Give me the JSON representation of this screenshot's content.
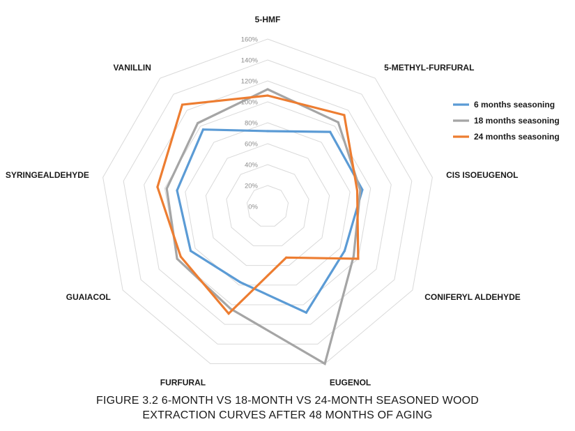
{
  "caption": {
    "line1": "FIGURE 3.2  6-MONTH VS 18-MONTH VS 24-MONTH SEASONED WOOD",
    "line2": "EXTRACTION CURVES AFTER 48 MONTHS OF AGING"
  },
  "chart_data": {
    "type": "radar",
    "categories": [
      "5-HMF",
      "5-METHYL-FURFURAL",
      "CIS ISOEUGENOL",
      "CONIFERYL ALDEHYDE",
      "EUGENOL",
      "FURFURAL",
      "GUAIACOL",
      "SYRINGEALDEHYDE",
      "VANILLIN"
    ],
    "ticks": [
      "0%",
      "20%",
      "40%",
      "60%",
      "80%",
      "100%",
      "120%",
      "140%",
      "160%"
    ],
    "rlim": [
      0,
      160
    ],
    "grid": true,
    "legend_position": "right",
    "series": [
      {
        "name": "6 months seasoning",
        "color": "#5b9bd5",
        "values": [
          72,
          93,
          92,
          85,
          108,
          77,
          85,
          88,
          96
        ]
      },
      {
        "name": "18 months seasoning",
        "color": "#a5a5a5",
        "values": [
          112,
          105,
          90,
          95,
          160,
          104,
          100,
          98,
          104
        ]
      },
      {
        "name": "24 months seasoning",
        "color": "#ed7d31",
        "values": [
          106,
          114,
          87,
          100,
          52,
          109,
          96,
          107,
          127
        ]
      }
    ]
  }
}
